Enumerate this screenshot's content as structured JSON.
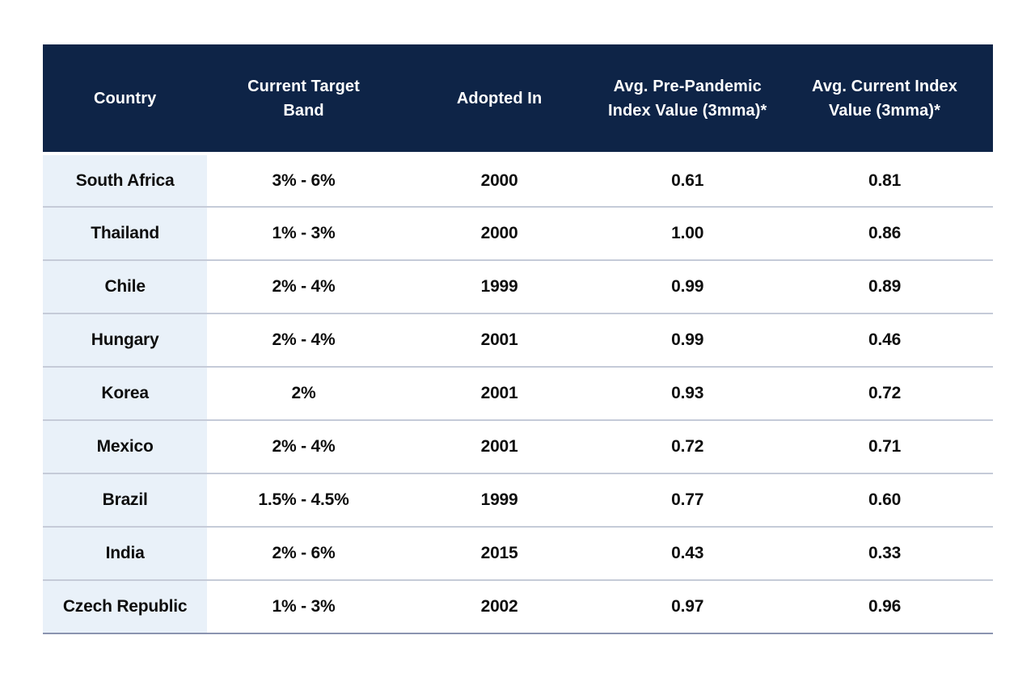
{
  "chart_data": {
    "type": "table",
    "columns": [
      "Country",
      "Current Target Band",
      "Adopted In",
      "Avg. Pre-Pandemic Index Value (3mma)*",
      "Avg. Current Index Value (3mma)*"
    ],
    "rows": [
      [
        "South Africa",
        "3% - 6%",
        "2000",
        "0.61",
        "0.81"
      ],
      [
        "Thailand",
        "1% - 3%",
        "2000",
        "1.00",
        "0.86"
      ],
      [
        "Chile",
        "2% - 4%",
        "1999",
        "0.99",
        "0.89"
      ],
      [
        "Hungary",
        "2% - 4%",
        "2001",
        "0.99",
        "0.46"
      ],
      [
        "Korea",
        "2%",
        "2001",
        "0.93",
        "0.72"
      ],
      [
        "Mexico",
        "2% - 4%",
        "2001",
        "0.72",
        "0.71"
      ],
      [
        "Brazil",
        "1.5% - 4.5%",
        "1999",
        "0.77",
        "0.60"
      ],
      [
        "India",
        "2% - 6%",
        "2015",
        "0.43",
        "0.33"
      ],
      [
        "Czech Republic",
        "1% - 3%",
        "2002",
        "0.97",
        "0.96"
      ]
    ],
    "layout_hints": {
      "header_rows": 1,
      "country_column_highlighted": true,
      "grid": "horizontal-dividers-only"
    }
  },
  "colors": {
    "header_bg": "#0e2447",
    "header_text": "#ffffff",
    "body_text": "#0e0e0e",
    "country_col_bg": "#e9f1f9",
    "row_divider": "#c5cbd8",
    "bottom_border": "#8b94b0"
  }
}
